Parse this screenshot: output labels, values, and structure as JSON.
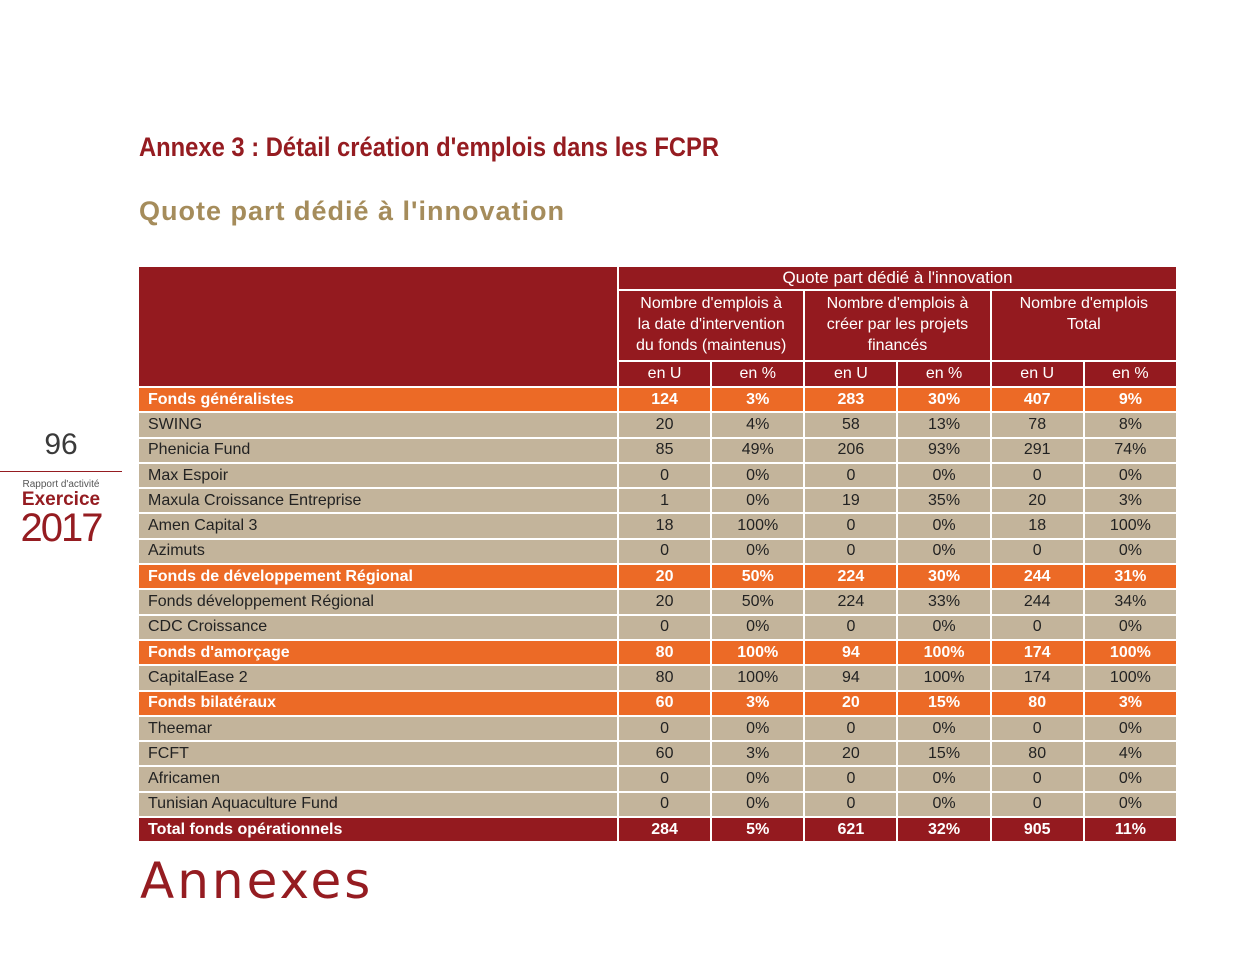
{
  "title": "Annexe 3 : Détail création d'emplois dans les FCPR",
  "subtitle": "Quote part dédié à l'innovation",
  "sidebar": {
    "page": "96",
    "report": "Rapport d'activité",
    "edition": "Exercice",
    "year": "2017"
  },
  "footer": "Annexes",
  "table": {
    "super_header": "Quote part dédié à l'innovation",
    "columns": [
      {
        "lines": [
          "Nombre d'emplois à",
          "la date d'intervention",
          "du fonds (maintenus)"
        ]
      },
      {
        "lines": [
          "Nombre d'emplois à",
          "créer par les projets",
          "financés"
        ]
      },
      {
        "lines": [
          "Nombre d'emplois",
          "Total"
        ]
      }
    ],
    "units": [
      "en U",
      "en %",
      "en U",
      "en %",
      "en U",
      "en %"
    ],
    "groups": [
      {
        "label": "Fonds généralistes",
        "values": [
          "124",
          "3%",
          "283",
          "30%",
          "407",
          "9%"
        ],
        "funds": [
          {
            "label": "SWING",
            "values": [
              "20",
              "4%",
              "58",
              "13%",
              "78",
              "8%"
            ]
          },
          {
            "label": "Phenicia Fund",
            "values": [
              "85",
              "49%",
              "206",
              "93%",
              "291",
              "74%"
            ]
          },
          {
            "label": "Max Espoir",
            "values": [
              "0",
              "0%",
              "0",
              "0%",
              "0",
              "0%"
            ]
          },
          {
            "label": "Maxula Croissance Entreprise",
            "values": [
              "1",
              "0%",
              "19",
              "35%",
              "20",
              "3%"
            ]
          },
          {
            "label": "Amen Capital 3",
            "values": [
              "18",
              "100%",
              "0",
              "0%",
              "18",
              "100%"
            ]
          },
          {
            "label": "Azimuts",
            "values": [
              "0",
              "0%",
              "0",
              "0%",
              "0",
              "0%"
            ]
          }
        ]
      },
      {
        "label": "Fonds de développement Régional",
        "values": [
          "20",
          "50%",
          "224",
          "30%",
          "244",
          "31%"
        ],
        "funds": [
          {
            "label": "Fonds développement Régional",
            "values": [
              "20",
              "50%",
              "224",
              "33%",
              "244",
              "34%"
            ]
          },
          {
            "label": "CDC Croissance",
            "values": [
              "0",
              "0%",
              "0",
              "0%",
              "0",
              "0%"
            ]
          }
        ]
      },
      {
        "label": "Fonds d'amorçage",
        "values": [
          "80",
          "100%",
          "94",
          "100%",
          "174",
          "100%"
        ],
        "funds": [
          {
            "label": "CapitalEase 2",
            "values": [
              "80",
              "100%",
              "94",
              "100%",
              "174",
              "100%"
            ]
          }
        ]
      },
      {
        "label": "Fonds bilatéraux",
        "values": [
          "60",
          "3%",
          "20",
          "15%",
          "80",
          "3%"
        ],
        "funds": [
          {
            "label": "Theemar",
            "values": [
              "0",
              "0%",
              "0",
              "0%",
              "0",
              "0%"
            ]
          },
          {
            "label": "FCFT",
            "values": [
              "60",
              "3%",
              "20",
              "15%",
              "80",
              "4%"
            ]
          },
          {
            "label": "Africamen",
            "values": [
              "0",
              "0%",
              "0",
              "0%",
              "0",
              "0%"
            ]
          },
          {
            "label": "Tunisian Aquaculture Fund",
            "values": [
              "0",
              "0%",
              "0",
              "0%",
              "0",
              "0%"
            ]
          }
        ]
      }
    ],
    "total": {
      "label": "Total fonds opérationnels",
      "values": [
        "284",
        "5%",
        "621",
        "32%",
        "905",
        "11%"
      ]
    }
  }
}
